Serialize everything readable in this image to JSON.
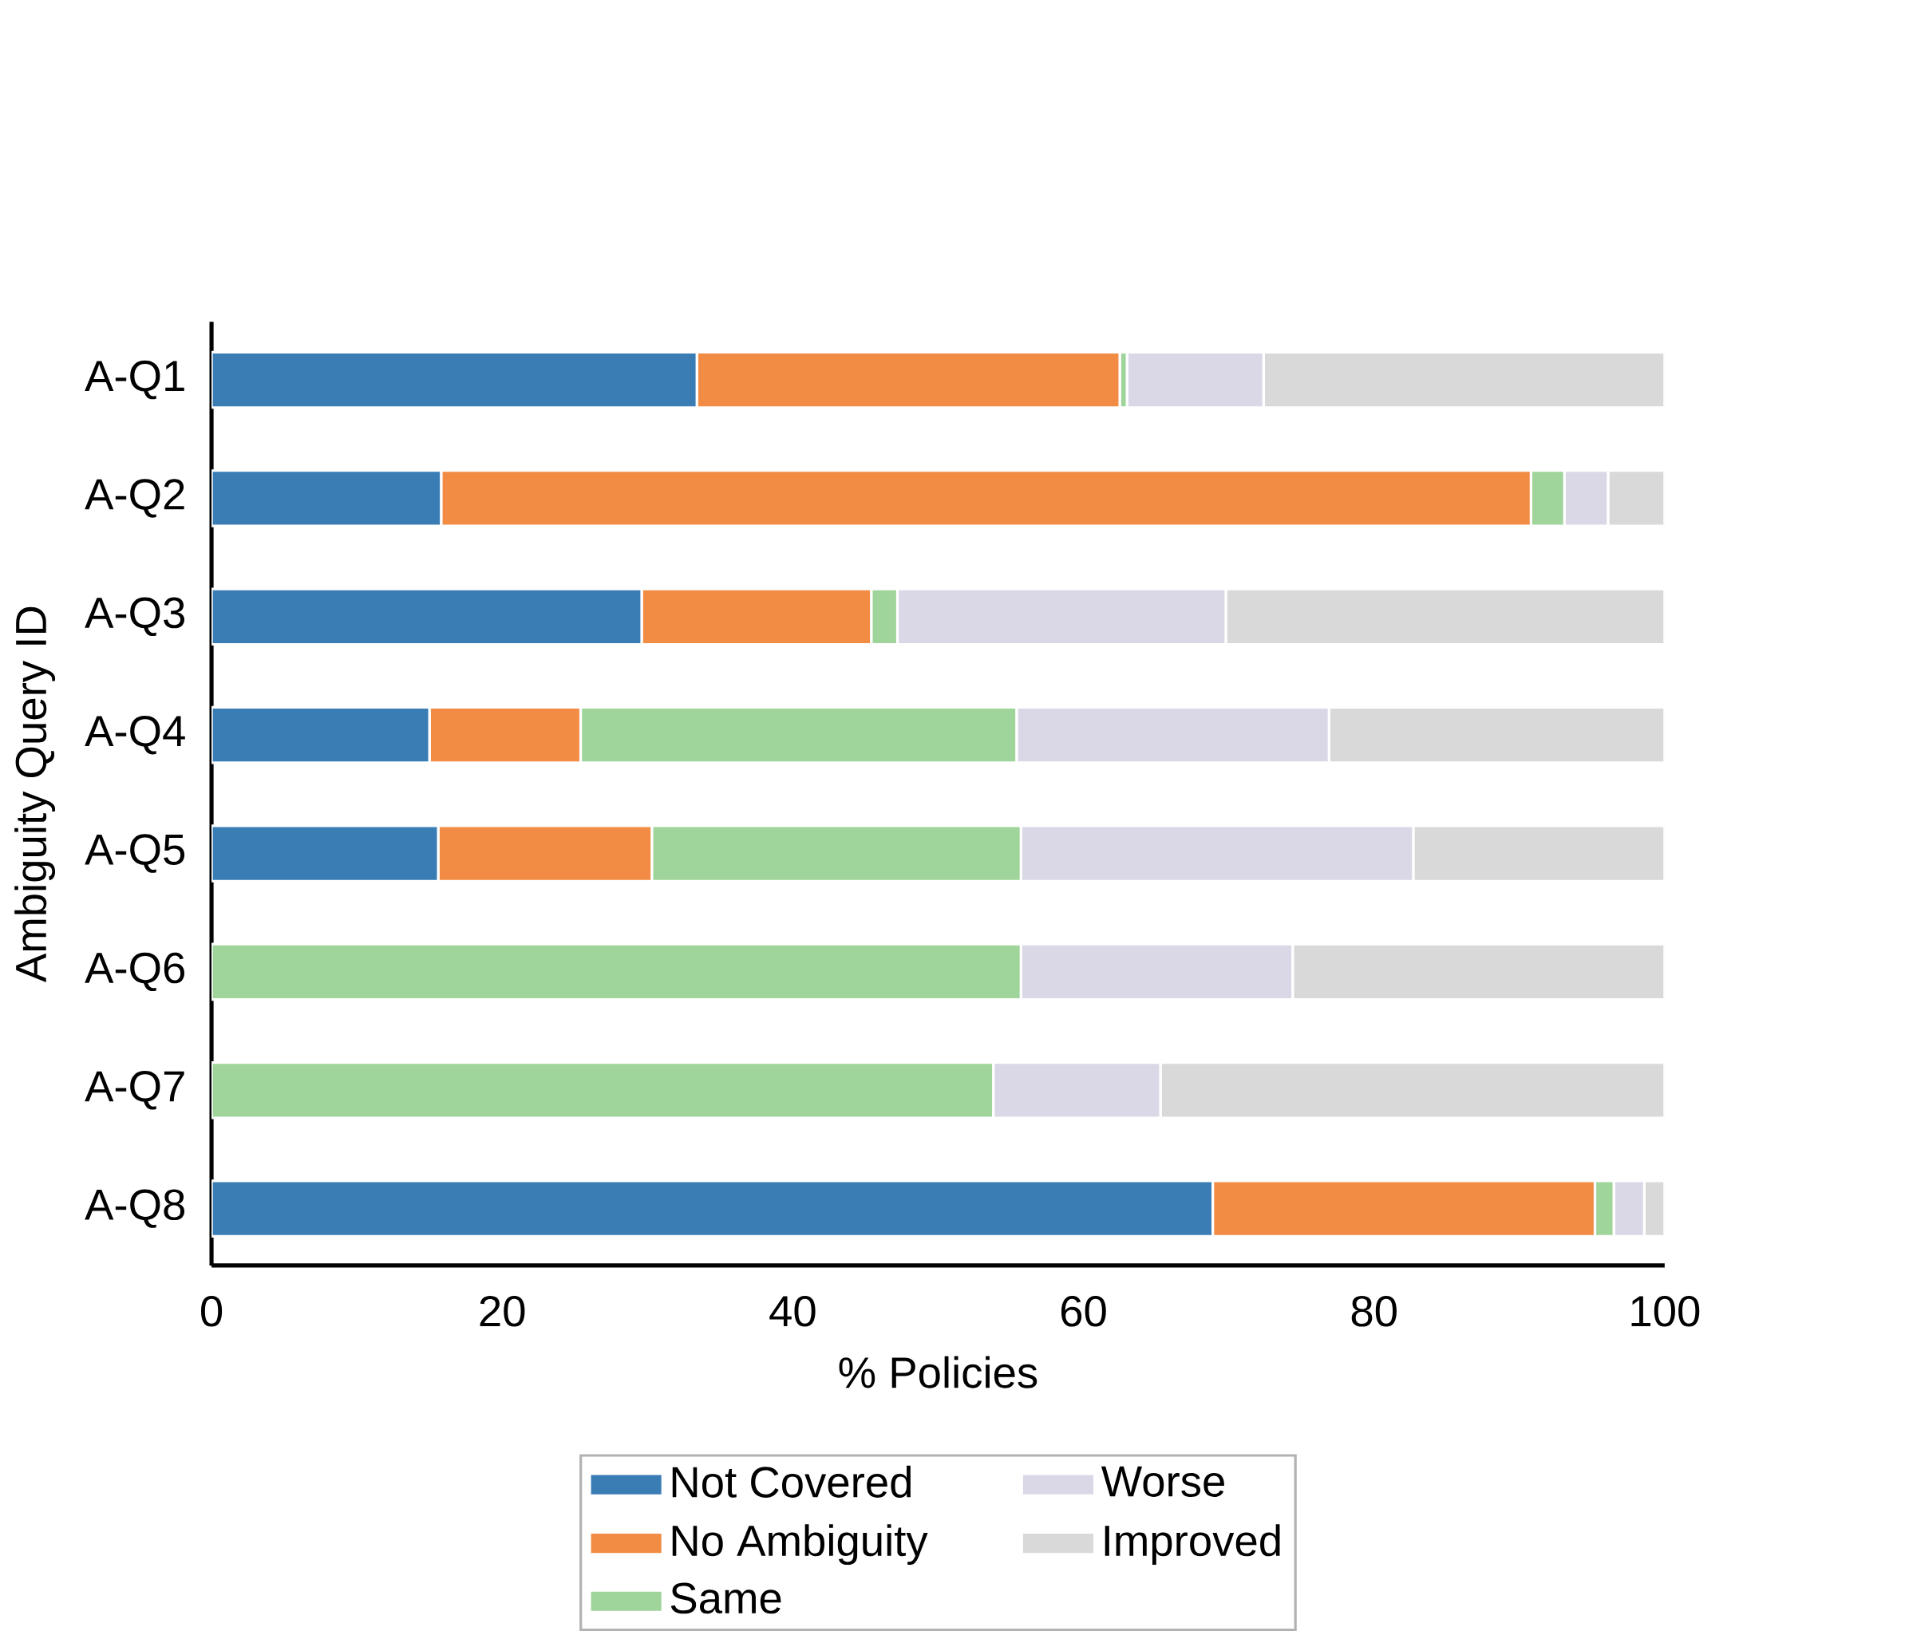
{
  "chart_data": {
    "type": "bar",
    "orientation": "horizontal",
    "stacked": true,
    "xlabel": "% Policies",
    "ylabel": "Ambiguity Query ID",
    "categories": [
      "A-Q1",
      "A-Q2",
      "A-Q3",
      "A-Q4",
      "A-Q5",
      "A-Q6",
      "A-Q7",
      "A-Q8"
    ],
    "series": [
      {
        "name": "Not Covered",
        "color": "#3a7db5",
        "values": [
          33.4,
          15.8,
          29.6,
          15.0,
          15.6,
          0,
          0,
          68.9
        ]
      },
      {
        "name": "No Ambiguity",
        "color": "#f28c45",
        "values": [
          29.1,
          75.0,
          15.8,
          10.4,
          14.7,
          0,
          0,
          26.3
        ]
      },
      {
        "name": "Same",
        "color": "#9fd49a",
        "values": [
          0.5,
          2.3,
          1.8,
          30.0,
          25.4,
          55.7,
          53.8,
          1.3
        ]
      },
      {
        "name": "Worse",
        "color": "#dad8e6",
        "values": [
          9.4,
          3.0,
          22.6,
          21.5,
          27.0,
          18.7,
          11.5,
          2.1
        ]
      },
      {
        "name": "Improved",
        "color": "#d9d9d9",
        "values": [
          27.6,
          3.9,
          30.2,
          23.1,
          17.3,
          25.6,
          34.7,
          1.4
        ]
      }
    ],
    "xlim": [
      0,
      100
    ],
    "xticks": [
      0,
      20,
      40,
      60,
      80,
      100
    ],
    "grid": false,
    "legend": "bottom"
  }
}
